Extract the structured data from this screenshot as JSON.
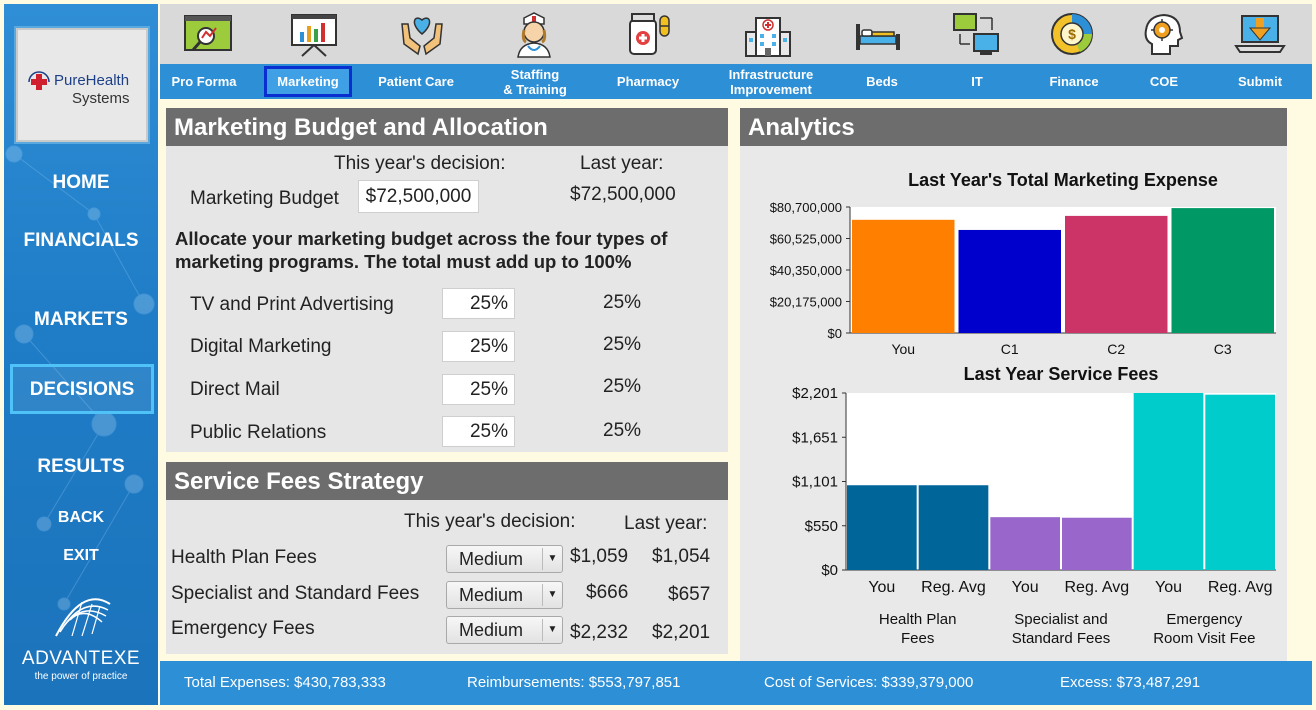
{
  "brand": {
    "logo_line1": "PureHealth",
    "logo_line2": "Systems",
    "footer_name": "ADVANTEXE",
    "footer_tagline": "the power of practice"
  },
  "sidebar": {
    "home": "HOME",
    "financials": "FINANCIALS",
    "markets": "MARKETS",
    "decisions": "DECISIONS",
    "results": "RESULTS",
    "back": "BACK",
    "exit": "EXIT"
  },
  "tabs": [
    {
      "label": "Pro Forma",
      "icon": "pro-forma-icon"
    },
    {
      "label": "Marketing",
      "icon": "marketing-icon",
      "active": true
    },
    {
      "label": "Patient Care",
      "icon": "patient-care-icon"
    },
    {
      "label": "Staffing & Training",
      "line1": "Staffing",
      "line2": "& Training",
      "icon": "nurse-icon"
    },
    {
      "label": "Pharmacy",
      "icon": "pill-bottle-icon"
    },
    {
      "label": "Infrastructure Improvement",
      "line1": "Infrastructure",
      "line2": "Improvement",
      "icon": "hospital-building-icon"
    },
    {
      "label": "Beds",
      "icon": "bed-icon"
    },
    {
      "label": "IT",
      "icon": "computer-network-icon"
    },
    {
      "label": "Finance",
      "icon": "coin-chart-icon"
    },
    {
      "label": "COE",
      "icon": "head-gear-icon"
    },
    {
      "label": "Submit",
      "icon": "laptop-download-icon"
    }
  ],
  "marketing": {
    "title": "Marketing Budget and Allocation",
    "this_year_header": "This year's decision:",
    "last_year_header": "Last year:",
    "budget_label": "Marketing Budget",
    "budget_value": "$72,500,000",
    "budget_last": "$72,500,000",
    "instruction_line1": "Allocate your marketing budget across the four types of",
    "instruction_line2": "marketing programs. The total must add up to 100%",
    "programs": [
      {
        "label": "TV and Print Advertising",
        "value": "25%",
        "last": "25%"
      },
      {
        "label": "Digital Marketing",
        "value": "25%",
        "last": "25%"
      },
      {
        "label": "Direct Mail",
        "value": "25%",
        "last": "25%"
      },
      {
        "label": "Public Relations",
        "value": "25%",
        "last": "25%"
      }
    ]
  },
  "fees": {
    "title": "Service Fees Strategy",
    "this_year_header": "This year's decision:",
    "last_year_header": "Last year:",
    "rows": [
      {
        "label": "Health Plan Fees",
        "selected": "Medium",
        "this_year": "$1,059",
        "last_year": "$1,054"
      },
      {
        "label": "Specialist and Standard Fees",
        "selected": "Medium",
        "this_year": "$666",
        "last_year": "$657"
      },
      {
        "label": "Emergency Fees",
        "selected": "Medium",
        "this_year": "$2,232",
        "last_year": "$2,201"
      }
    ]
  },
  "analytics": {
    "title": "Analytics"
  },
  "chart_data": [
    {
      "type": "bar",
      "title": "Last Year's Total Marketing Expense",
      "categories": [
        "You",
        "C1",
        "C2",
        "C3"
      ],
      "values": [
        72500000,
        66000000,
        75000000,
        80000000
      ],
      "colors": [
        "#ff8000",
        "#0000cc",
        "#cc3366",
        "#009966"
      ],
      "yticks": [
        "$0",
        "$20,175,000",
        "$40,350,000",
        "$60,525,000",
        "$80,700,000"
      ],
      "ylim": [
        0,
        80700000
      ]
    },
    {
      "type": "bar",
      "title": "Last Year Service Fees",
      "categories": [
        "You",
        "Reg. Avg",
        "You",
        "Reg. Avg",
        "You",
        "Reg. Avg"
      ],
      "groups": [
        {
          "line1": "Health Plan",
          "line2": "Fees"
        },
        {
          "line1": "Specialist and",
          "line2": "Standard Fees"
        },
        {
          "line1": "Emergency",
          "line2": "Room Visit Fee"
        }
      ],
      "values": [
        1054,
        1054,
        657,
        650,
        2201,
        2180
      ],
      "colors": [
        "#006699",
        "#006699",
        "#9966cc",
        "#9966cc",
        "#00cccc",
        "#00cccc"
      ],
      "yticks": [
        "$0",
        "$550",
        "$1,101",
        "$1,651",
        "$2,201"
      ],
      "ylim": [
        0,
        2201
      ]
    }
  ],
  "bottom": {
    "total_expenses": "Total Expenses:  $430,783,333",
    "reimbursements": "Reimbursements:  $553,797,851",
    "cost_of_services": "Cost of Services:  $339,379,000",
    "excess": "Excess:  $73,487,291"
  }
}
